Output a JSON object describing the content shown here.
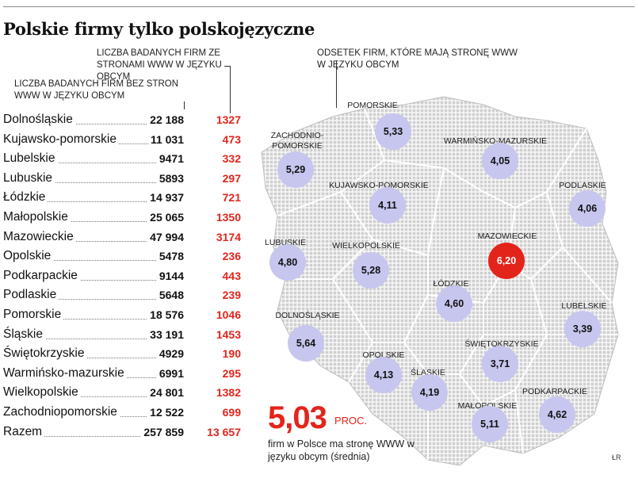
{
  "title": "Polskie firmy tylko polskojęzyczne",
  "col_with_header": "LICZBA BADANYCH FIRM ZE STRONAMI WWW W JĘZYKU OBCYM",
  "col_without_header": "LICZBA BADANYCH FIRM BEZ STRON WWW W JĘZYKU OBCYM",
  "map_header": "ODSETEK FIRM, KTÓRE MAJĄ STRONĘ WWW W JĘZYKU OBCYM",
  "rows": [
    {
      "name": "Dolnośląskie",
      "without": "22 188",
      "with": "1327"
    },
    {
      "name": "Kujawsko-pomorskie",
      "without": "11 031",
      "with": "473"
    },
    {
      "name": "Lubelskie",
      "without": "9471",
      "with": "332"
    },
    {
      "name": "Lubuskie",
      "without": "5893",
      "with": "297"
    },
    {
      "name": "Łódzkie",
      "without": "14 937",
      "with": "721"
    },
    {
      "name": "Małopolskie",
      "without": "25 065",
      "with": "1350"
    },
    {
      "name": "Mazowieckie",
      "without": "47 994",
      "with": "3174"
    },
    {
      "name": "Opolskie",
      "without": "5478",
      "with": "236"
    },
    {
      "name": "Podkarpackie",
      "without": "9144",
      "with": "443"
    },
    {
      "name": "Podlaskie",
      "without": "5648",
      "with": "239"
    },
    {
      "name": "Pomorskie",
      "without": "18 576",
      "with": "1046"
    },
    {
      "name": "Śląskie",
      "without": "33 191",
      "with": "1453"
    },
    {
      "name": "Świętokrzyskie",
      "without": "4929",
      "with": "190"
    },
    {
      "name": "Warmińsko-mazurskie",
      "without": "6991",
      "with": "295"
    },
    {
      "name": "Wielkopolskie",
      "without": "24 801",
      "with": "1382"
    },
    {
      "name": "Zachodniopomorskie",
      "without": "12 522",
      "with": "699"
    },
    {
      "name": "Razem",
      "without": "257 859",
      "with": "13 657"
    }
  ],
  "regions": [
    {
      "label": "POMORSKIE",
      "value": "5,33",
      "highlight": false
    },
    {
      "label": "ZACHODNIO-POMORSKIE",
      "value": "5,29",
      "highlight": false
    },
    {
      "label": "WARMIŃSKO-MAZURSKIE",
      "value": "4,05",
      "highlight": false
    },
    {
      "label": "KUJAWSKO-POMORSKIE",
      "value": "4,11",
      "highlight": false
    },
    {
      "label": "PODLASKIE",
      "value": "4,06",
      "highlight": false
    },
    {
      "label": "MAZOWIECKIE",
      "value": "6,20",
      "highlight": true
    },
    {
      "label": "LUBUSKIE",
      "value": "4,80",
      "highlight": false
    },
    {
      "label": "WIELKOPOLSKIE",
      "value": "5,28",
      "highlight": false
    },
    {
      "label": "ŁÓDZKIE",
      "value": "4,60",
      "highlight": false
    },
    {
      "label": "LUBELSKIE",
      "value": "3,39",
      "highlight": false
    },
    {
      "label": "DOLNOŚLĄSKIE",
      "value": "5,64",
      "highlight": false
    },
    {
      "label": "ŚWIĘTOKRZYSKIE",
      "value": "3,71",
      "highlight": false
    },
    {
      "label": "OPOLSKIE",
      "value": "4,13",
      "highlight": false
    },
    {
      "label": "ŚLĄSKIE",
      "value": "4,19",
      "highlight": false
    },
    {
      "label": "PODKARPACKIE",
      "value": "4,62",
      "highlight": false
    },
    {
      "label": "MAŁOPOLSKIE",
      "value": "5,11",
      "highlight": false
    }
  ],
  "average": {
    "value": "5,03",
    "unit": "PROC.",
    "caption": "firm w Polsce ma stronę WWW w języku obcym (średnia)"
  },
  "credit": "ŁR",
  "colors": {
    "red": "#e3241b",
    "bubble": "#c7c6ef",
    "map": "#cfcfcf"
  }
}
